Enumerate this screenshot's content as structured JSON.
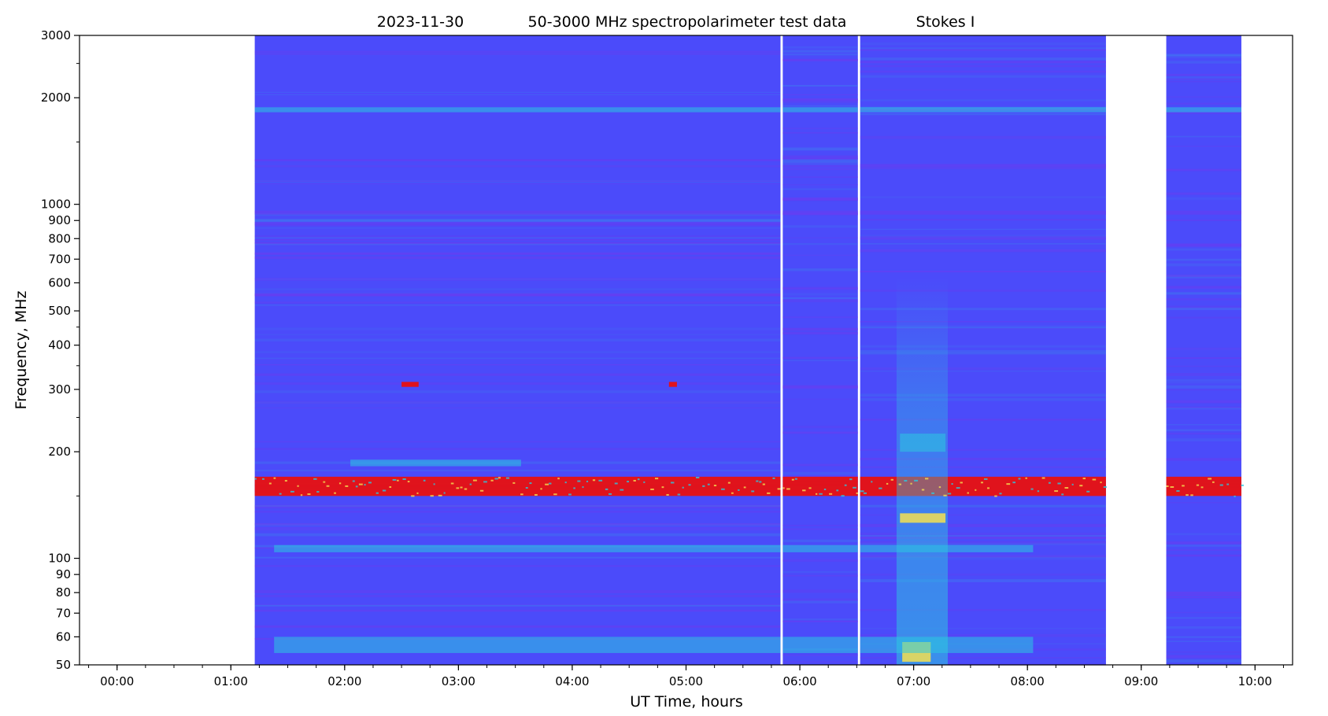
{
  "chart_data": {
    "type": "heatmap",
    "title": {
      "date": "2023-11-30",
      "main": "50-3000 MHz spectropolarimeter test data",
      "stokes": "Stokes I"
    },
    "xlabel": "UT Time, hours",
    "ylabel": "Frequency, MHz",
    "x_unit": "hours UT",
    "xlim": [
      -0.33,
      10.33
    ],
    "ylim": [
      50,
      3000
    ],
    "y_scale": "log",
    "grid": false,
    "legend": "none",
    "x_ticks": [
      {
        "value": 0,
        "label": "00:00"
      },
      {
        "value": 1,
        "label": "01:00"
      },
      {
        "value": 2,
        "label": "02:00"
      },
      {
        "value": 3,
        "label": "03:00"
      },
      {
        "value": 4,
        "label": "04:00"
      },
      {
        "value": 5,
        "label": "05:00"
      },
      {
        "value": 6,
        "label": "06:00"
      },
      {
        "value": 7,
        "label": "07:00"
      },
      {
        "value": 8,
        "label": "08:00"
      },
      {
        "value": 9,
        "label": "09:00"
      },
      {
        "value": 10,
        "label": "10:00"
      }
    ],
    "x_minor_step": 0.25,
    "y_ticks": [
      {
        "value": 50,
        "label": "50"
      },
      {
        "value": 60,
        "label": "60"
      },
      {
        "value": 70,
        "label": "70"
      },
      {
        "value": 80,
        "label": "80"
      },
      {
        "value": 90,
        "label": "90"
      },
      {
        "value": 100,
        "label": "100"
      },
      {
        "value": 200,
        "label": "200"
      },
      {
        "value": 300,
        "label": "300"
      },
      {
        "value": 400,
        "label": "400"
      },
      {
        "value": 500,
        "label": "500"
      },
      {
        "value": 600,
        "label": "600"
      },
      {
        "value": 700,
        "label": "700"
      },
      {
        "value": 800,
        "label": "800"
      },
      {
        "value": 900,
        "label": "900"
      },
      {
        "value": 1000,
        "label": "1000"
      },
      {
        "value": 2000,
        "label": "2000"
      },
      {
        "value": 3000,
        "label": "3000"
      }
    ],
    "y_minor_ticks": [
      150,
      250,
      350,
      450,
      1500,
      2500
    ],
    "colors": {
      "background": "#4b4bfa",
      "low": "#6a3cf0",
      "mid": "#2cc8e0",
      "warm": "#f5e050",
      "high": "#e81010"
    },
    "data_segments": [
      {
        "start": 1.21,
        "end": 5.83
      },
      {
        "start": 5.85,
        "end": 6.51
      },
      {
        "start": 6.53,
        "end": 8.69
      },
      {
        "start": 9.22,
        "end": 9.88
      }
    ],
    "features": [
      {
        "name": "Persistent RFI band",
        "t_start": 1.21,
        "t_end": 9.88,
        "f_min": 150,
        "f_max": 170,
        "level": "high"
      },
      {
        "name": "Broadband burst",
        "t_start": 6.85,
        "t_end": 7.3,
        "f_min": 50,
        "f_max": 620,
        "level": "mid"
      },
      {
        "name": "Burst core 130 MHz",
        "t_start": 6.88,
        "t_end": 7.28,
        "f_min": 126,
        "f_max": 134,
        "level": "warm"
      },
      {
        "name": "Burst core 55 MHz",
        "t_start": 6.9,
        "t_end": 7.15,
        "f_min": 51,
        "f_max": 58,
        "level": "warm"
      },
      {
        "name": "Burst 210 MHz",
        "t_start": 6.88,
        "t_end": 7.28,
        "f_min": 200,
        "f_max": 225,
        "level": "mid"
      },
      {
        "name": "Band 1850 MHz",
        "t_start": 1.21,
        "t_end": 9.88,
        "f_min": 1820,
        "f_max": 1880,
        "level": "mid"
      },
      {
        "name": "Band 950 MHz",
        "t_start": 1.21,
        "t_end": 9.88,
        "f_min": 935,
        "f_max": 960,
        "level": "low"
      },
      {
        "name": "Band 57 MHz",
        "t_start": 1.38,
        "t_end": 8.05,
        "f_min": 54,
        "f_max": 60,
        "level": "mid"
      },
      {
        "name": "Band 107 MHz",
        "t_start": 1.38,
        "t_end": 8.05,
        "f_min": 104,
        "f_max": 109,
        "level": "mid"
      },
      {
        "name": "Band 185 MHz",
        "t_start": 2.05,
        "t_end": 3.55,
        "f_min": 182,
        "f_max": 190,
        "level": "mid"
      },
      {
        "name": "Spot 310 MHz",
        "t_start": 2.5,
        "t_end": 2.65,
        "f_min": 305,
        "f_max": 315,
        "level": "high"
      },
      {
        "name": "Spot 310 MHz b",
        "t_start": 4.85,
        "t_end": 4.92,
        "f_min": 305,
        "f_max": 315,
        "level": "high"
      }
    ]
  }
}
